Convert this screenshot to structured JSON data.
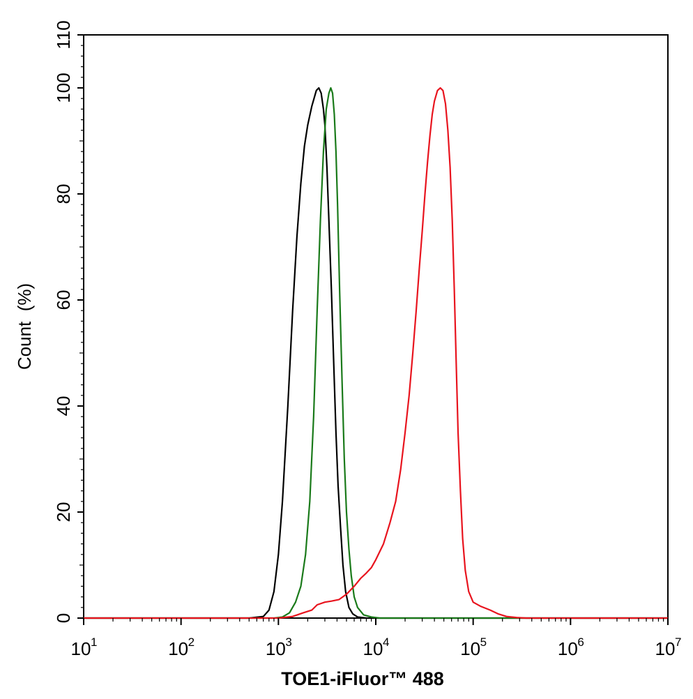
{
  "chart_data": {
    "type": "line",
    "title": "",
    "xlabel": "TOE1-iFluor™ 488",
    "ylabel": "Count  (%)",
    "x_scale": "log",
    "xlim": [
      10,
      10000000
    ],
    "ylim": [
      0,
      110
    ],
    "x_ticks": [
      {
        "base": "10",
        "exp": "1",
        "value": 10
      },
      {
        "base": "10",
        "exp": "2",
        "value": 100
      },
      {
        "base": "10",
        "exp": "3",
        "value": 1000
      },
      {
        "base": "10",
        "exp": "4",
        "value": 10000
      },
      {
        "base": "10",
        "exp": "5",
        "value": 100000
      },
      {
        "base": "10",
        "exp": "6",
        "value": 1000000
      },
      {
        "base": "10",
        "exp": "7",
        "value": 10000000
      }
    ],
    "y_ticks": [
      "0",
      "20",
      "40",
      "60",
      "80",
      "100",
      "110"
    ],
    "grid": false,
    "legend": "none",
    "series": [
      {
        "color": "#000000",
        "points": [
          [
            10,
            0
          ],
          [
            500,
            0
          ],
          [
            700,
            0.3
          ],
          [
            800,
            1.5
          ],
          [
            900,
            5
          ],
          [
            1000,
            12
          ],
          [
            1100,
            22
          ],
          [
            1250,
            40
          ],
          [
            1400,
            58
          ],
          [
            1550,
            72
          ],
          [
            1700,
            82
          ],
          [
            1850,
            89
          ],
          [
            2000,
            93
          ],
          [
            2200,
            96.5
          ],
          [
            2450,
            99.5
          ],
          [
            2600,
            100
          ],
          [
            2750,
            99
          ],
          [
            2900,
            96
          ],
          [
            3000,
            93
          ],
          [
            3150,
            85
          ],
          [
            3300,
            75
          ],
          [
            3500,
            62
          ],
          [
            3700,
            48
          ],
          [
            3900,
            35
          ],
          [
            4100,
            25
          ],
          [
            4350,
            17
          ],
          [
            4600,
            10
          ],
          [
            4900,
            5
          ],
          [
            5300,
            2
          ],
          [
            5800,
            0.8
          ],
          [
            6500,
            0.2
          ],
          [
            8000,
            0
          ],
          [
            10000000,
            0
          ]
        ]
      },
      {
        "color": "#1a7a1a",
        "points": [
          [
            10,
            0
          ],
          [
            900,
            0
          ],
          [
            1100,
            0.2
          ],
          [
            1300,
            1
          ],
          [
            1500,
            3
          ],
          [
            1700,
            6
          ],
          [
            1900,
            12
          ],
          [
            2100,
            22
          ],
          [
            2300,
            38
          ],
          [
            2500,
            58
          ],
          [
            2700,
            75
          ],
          [
            2900,
            88
          ],
          [
            3100,
            96
          ],
          [
            3300,
            99
          ],
          [
            3450,
            100
          ],
          [
            3600,
            99
          ],
          [
            3750,
            95
          ],
          [
            3900,
            88
          ],
          [
            4050,
            78
          ],
          [
            4250,
            62
          ],
          [
            4500,
            45
          ],
          [
            4750,
            30
          ],
          [
            5000,
            20
          ],
          [
            5300,
            13
          ],
          [
            5600,
            8
          ],
          [
            6000,
            4
          ],
          [
            6500,
            2
          ],
          [
            7500,
            0.6
          ],
          [
            9000,
            0.2
          ],
          [
            11000,
            0
          ],
          [
            10000000,
            0
          ]
        ]
      },
      {
        "color": "#e8141e",
        "points": [
          [
            10,
            0
          ],
          [
            1000,
            0
          ],
          [
            1400,
            0.3
          ],
          [
            1800,
            1
          ],
          [
            2200,
            1.5
          ],
          [
            2500,
            2.5
          ],
          [
            3000,
            3
          ],
          [
            3500,
            3.2
          ],
          [
            4200,
            3.5
          ],
          [
            5000,
            4.5
          ],
          [
            6000,
            6
          ],
          [
            7000,
            7.5
          ],
          [
            8000,
            8.5
          ],
          [
            9000,
            9.5
          ],
          [
            10000,
            11
          ],
          [
            12000,
            14
          ],
          [
            14000,
            18
          ],
          [
            16000,
            22
          ],
          [
            18000,
            28
          ],
          [
            20000,
            35
          ],
          [
            22000,
            42
          ],
          [
            24000,
            50
          ],
          [
            26000,
            58
          ],
          [
            28000,
            66
          ],
          [
            30000,
            73
          ],
          [
            32000,
            80
          ],
          [
            34000,
            86
          ],
          [
            36000,
            91
          ],
          [
            38000,
            95
          ],
          [
            40000,
            97.5
          ],
          [
            43000,
            99.5
          ],
          [
            46000,
            100
          ],
          [
            49000,
            99.5
          ],
          [
            52000,
            97
          ],
          [
            55000,
            92
          ],
          [
            58000,
            85
          ],
          [
            61000,
            75
          ],
          [
            64000,
            62
          ],
          [
            67000,
            48
          ],
          [
            70000,
            35
          ],
          [
            74000,
            24
          ],
          [
            78000,
            15
          ],
          [
            83000,
            9
          ],
          [
            90000,
            5
          ],
          [
            100000,
            3
          ],
          [
            120000,
            2.2
          ],
          [
            150000,
            1.5
          ],
          [
            180000,
            0.8
          ],
          [
            220000,
            0.3
          ],
          [
            280000,
            0.1
          ],
          [
            350000,
            0
          ],
          [
            10000000,
            0
          ]
        ]
      }
    ]
  }
}
